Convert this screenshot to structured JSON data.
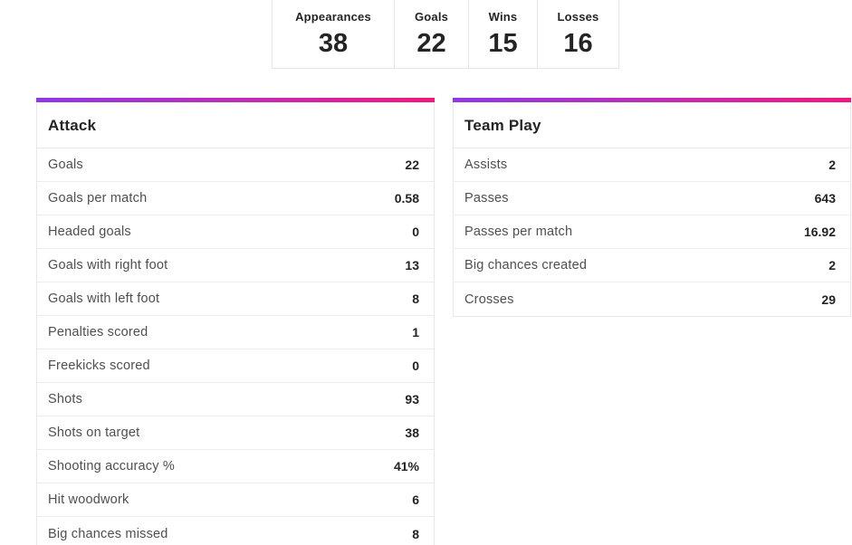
{
  "summary_bar": {
    "stats": [
      {
        "label": "Appearances",
        "value": "38"
      },
      {
        "label": "Goals",
        "value": "22"
      },
      {
        "label": "Wins",
        "value": "15"
      },
      {
        "label": "Losses",
        "value": "16"
      }
    ]
  },
  "cards": [
    {
      "title": "Attack",
      "rows": [
        {
          "label": "Goals",
          "value": "22"
        },
        {
          "label": "Goals per match",
          "value": "0.58"
        },
        {
          "label": "Headed goals",
          "value": "0"
        },
        {
          "label": "Goals with right foot",
          "value": "13"
        },
        {
          "label": "Goals with left foot",
          "value": "8"
        },
        {
          "label": "Penalties scored",
          "value": "1"
        },
        {
          "label": "Freekicks scored",
          "value": "0"
        },
        {
          "label": "Shots",
          "value": "93"
        },
        {
          "label": "Shots on target",
          "value": "38"
        },
        {
          "label": "Shooting accuracy %",
          "value": "41%"
        },
        {
          "label": "Hit woodwork",
          "value": "6"
        },
        {
          "label": "Big chances missed",
          "value": "8"
        }
      ]
    },
    {
      "title": "Team Play",
      "rows": [
        {
          "label": "Assists",
          "value": "2"
        },
        {
          "label": "Passes",
          "value": "643"
        },
        {
          "label": "Passes per match",
          "value": "16.92"
        },
        {
          "label": "Big chances created",
          "value": "2"
        },
        {
          "label": "Crosses",
          "value": "29"
        }
      ]
    }
  ],
  "colors": {
    "accent_gradient_start": "#9038e5",
    "accent_gradient_end": "#f5157e",
    "text_dark": "#242424",
    "text_gray": "#4f4f52",
    "border": "#e8e8e8"
  }
}
